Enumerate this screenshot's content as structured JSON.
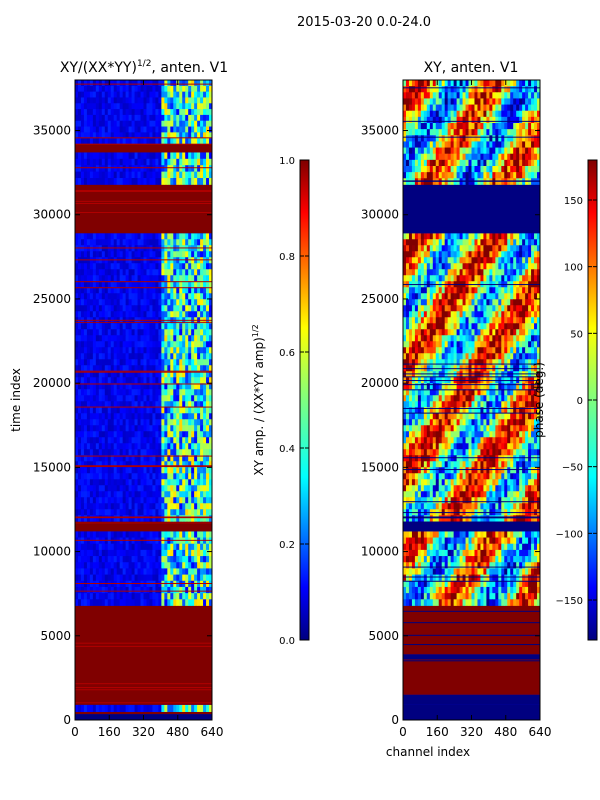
{
  "figure_title": "2015-03-20 0.0-24.0",
  "xlabel": "channel index",
  "colors": {
    "background": "#ffffff",
    "saturated_red": "#800000",
    "dark_blue": "#00007f",
    "frame": "#000000"
  },
  "chart_data": [
    {
      "type": "heatmap",
      "title_main": "XY/(XX*YY)",
      "title_exp": "1/2",
      "title_tail": ", anten. V1",
      "xlabel": "",
      "ylabel": "time index",
      "xlim": [
        0,
        640
      ],
      "ylim": [
        0,
        38000
      ],
      "xticks": [
        0,
        160,
        320,
        480,
        640
      ],
      "yticks": [
        0,
        5000,
        10000,
        15000,
        20000,
        25000,
        30000,
        35000
      ],
      "colormap": "jet",
      "colorbar": {
        "label_main": "XY amp. / (XX*YY amp)",
        "label_exp": "1/2",
        "range": [
          0.0,
          1.0
        ],
        "ticks": [
          "0.0",
          "0.2",
          "0.4",
          "0.6",
          "0.8",
          "1.0"
        ],
        "tick_values": [
          0.0,
          0.2,
          0.4,
          0.6,
          0.8,
          1.0
        ]
      },
      "regions": [
        {
          "y_from": 0,
          "y_to": 350,
          "value": 0.0
        },
        {
          "y_from": 350,
          "y_to": 500,
          "value": 1.0
        },
        {
          "y_from": 500,
          "y_to": 900,
          "value": 0.05
        },
        {
          "y_from": 900,
          "y_to": 6800,
          "value": 1.0
        },
        {
          "y_from": 6800,
          "y_to": 11200,
          "value": 0.08
        },
        {
          "y_from": 11200,
          "y_to": 11800,
          "value": 1.0
        },
        {
          "y_from": 11800,
          "y_to": 28900,
          "value": 0.08
        },
        {
          "y_from": 28900,
          "y_to": 31800,
          "value": 1.0
        },
        {
          "y_from": 31800,
          "y_to": 33700,
          "value": 0.08
        },
        {
          "y_from": 33700,
          "y_to": 34200,
          "value": 1.0
        },
        {
          "y_from": 34200,
          "y_to": 38000,
          "value": 0.08
        }
      ],
      "active_channel_band": [
        410,
        640
      ]
    },
    {
      "type": "heatmap",
      "title_main": "XY, anten. V1",
      "xlabel": "channel index",
      "ylabel": "",
      "xlim": [
        0,
        640
      ],
      "ylim": [
        0,
        38000
      ],
      "xticks": [
        0,
        160,
        320,
        480,
        640
      ],
      "yticks": [
        0,
        5000,
        10000,
        15000,
        20000,
        25000,
        30000,
        35000
      ],
      "colormap": "jet",
      "colorbar": {
        "label_main": "phase (deg.)",
        "range": [
          -180,
          180
        ],
        "ticks": [
          "−150",
          "−100",
          "−50",
          "0",
          "50",
          "100",
          "150"
        ],
        "tick_values": [
          -150,
          -100,
          -50,
          0,
          50,
          100,
          150
        ]
      },
      "regions": [
        {
          "y_from": 0,
          "y_to": 900,
          "value": 0.0
        },
        {
          "y_from": 900,
          "y_to": 1500,
          "value": 0.0
        },
        {
          "y_from": 1500,
          "y_to": 3600,
          "value": 1.0
        },
        {
          "y_from": 3600,
          "y_to": 3900,
          "value": 0.0
        },
        {
          "y_from": 3900,
          "y_to": 6800,
          "value": 1.0
        },
        {
          "y_from": 6800,
          "y_to": 11200,
          "value": 0.55
        },
        {
          "y_from": 11200,
          "y_to": 11800,
          "value": 0.0
        },
        {
          "y_from": 11800,
          "y_to": 28900,
          "value": 0.6
        },
        {
          "y_from": 28900,
          "y_to": 31800,
          "value": 0.0
        },
        {
          "y_from": 31800,
          "y_to": 38000,
          "value": 0.55
        }
      ]
    }
  ]
}
